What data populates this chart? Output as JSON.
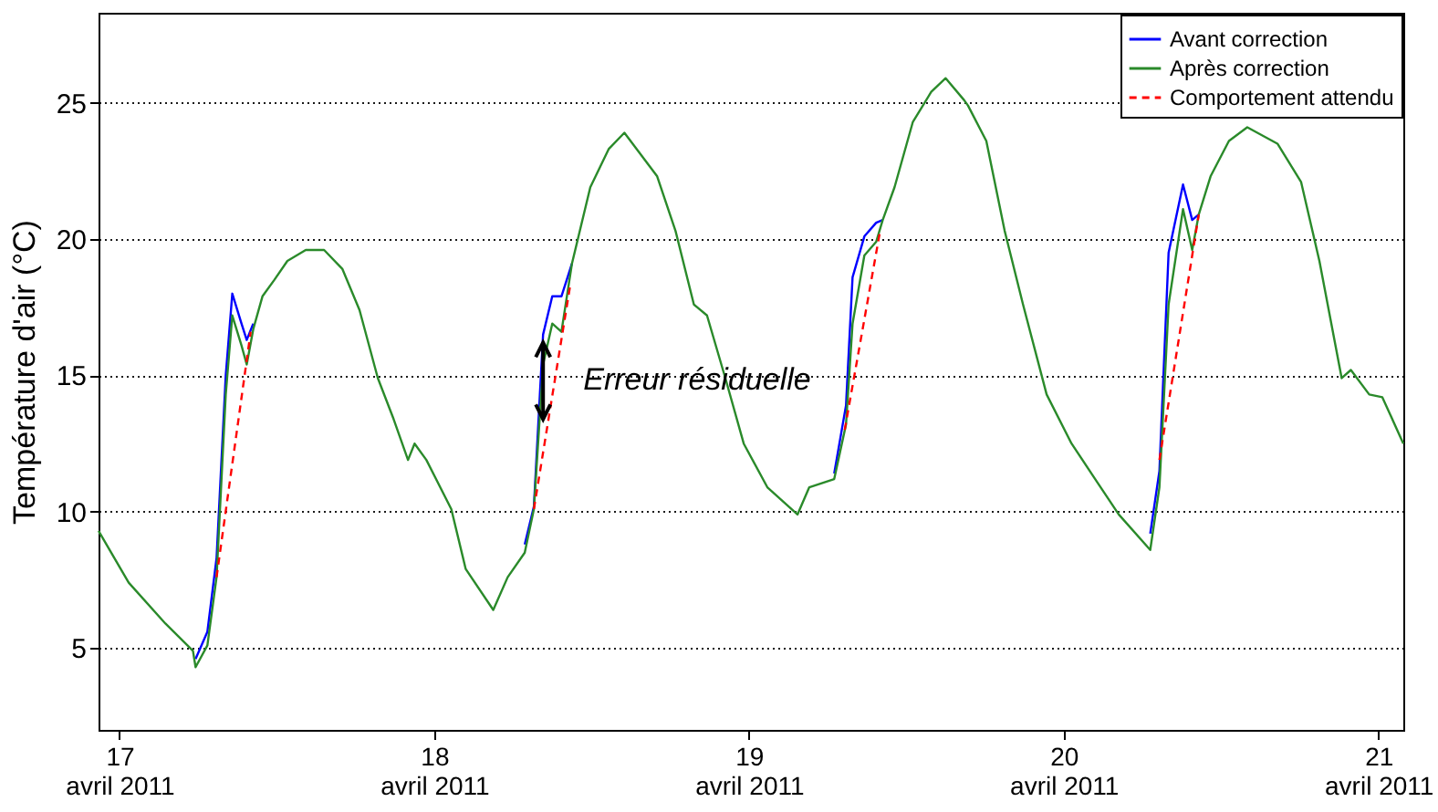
{
  "chart_data": {
    "type": "line",
    "ylabel": "Température d'air (°C)",
    "x": [
      "2011-04-16T22:24",
      "2011-04-17T00:42",
      "2011-04-17T03:30",
      "2011-04-17T05:36",
      "2011-04-17T05:48",
      "2011-04-17T06:42",
      "2011-04-17T07:24",
      "2011-04-17T08:06",
      "2011-04-17T08:36",
      "2011-04-17T09:18",
      "2011-04-17T09:42",
      "2011-04-17T10:12",
      "2011-04-17T10:54",
      "2011-04-17T11:48",
      "2011-04-17T12:48",
      "2011-04-17T14:12",
      "2011-04-17T15:36",
      "2011-04-17T17:00",
      "2011-04-17T18:18",
      "2011-04-17T19:42",
      "2011-04-17T20:54",
      "2011-04-17T22:00",
      "2011-04-17T22:30",
      "2011-04-17T23:24",
      "2011-04-18T01:18",
      "2011-04-18T02:24",
      "2011-04-18T04:30",
      "2011-04-18T05:36",
      "2011-04-18T06:54",
      "2011-04-18T07:36",
      "2011-04-18T08:18",
      "2011-04-18T09:00",
      "2011-04-18T09:42",
      "2011-04-18T10:30",
      "2011-04-18T11:54",
      "2011-04-18T13:18",
      "2011-04-18T14:30",
      "2011-04-18T15:36",
      "2011-04-18T17:00",
      "2011-04-18T18:24",
      "2011-04-18T19:48",
      "2011-04-18T20:48",
      "2011-04-18T22:12",
      "2011-04-18T23:36",
      "2011-04-19T01:24",
      "2011-04-19T03:42",
      "2011-04-19T04:36",
      "2011-04-19T06:30",
      "2011-04-19T07:24",
      "2011-04-19T07:54",
      "2011-04-19T08:48",
      "2011-04-19T09:42",
      "2011-04-19T10:12",
      "2011-04-19T11:06",
      "2011-04-19T12:30",
      "2011-04-19T13:54",
      "2011-04-19T15:00",
      "2011-04-19T16:24",
      "2011-04-19T16:42",
      "2011-04-19T18:06",
      "2011-04-19T19:30",
      "2011-04-19T20:54",
      "2011-04-19T22:42",
      "2011-04-20T00:36",
      "2011-04-20T02:24",
      "2011-04-20T04:12",
      "2011-04-20T06:36",
      "2011-04-20T07:18",
      "2011-04-20T08:00",
      "2011-04-20T09:06",
      "2011-04-20T09:48",
      "2011-04-20T10:18",
      "2011-04-20T11:12",
      "2011-04-20T12:36",
      "2011-04-20T14:00",
      "2011-04-20T16:18",
      "2011-04-20T18:06",
      "2011-04-20T19:30",
      "2011-04-20T21:12",
      "2011-04-20T21:54",
      "2011-04-20T23:18",
      "2011-04-21T00:18",
      "2011-04-21T01:54"
    ],
    "series": [
      {
        "name": "Avant correction",
        "color": "#0000ff",
        "values": [
          null,
          null,
          null,
          null,
          4.6,
          5.6,
          8.3,
          15.0,
          18.0,
          16.9,
          16.3,
          16.9,
          null,
          null,
          null,
          null,
          null,
          null,
          null,
          null,
          null,
          null,
          null,
          null,
          null,
          null,
          null,
          null,
          8.8,
          10.2,
          16.5,
          17.9,
          17.9,
          19.1,
          null,
          null,
          null,
          null,
          null,
          null,
          null,
          null,
          null,
          null,
          null,
          null,
          null,
          11.4,
          13.9,
          18.6,
          20.1,
          20.6,
          20.7,
          null,
          null,
          null,
          null,
          null,
          null,
          null,
          null,
          null,
          null,
          null,
          null,
          null,
          9.2,
          11.5,
          19.5,
          22.0,
          20.7,
          20.9,
          null,
          null,
          null,
          null,
          null,
          null,
          null,
          null,
          null,
          null,
          null
        ]
      },
      {
        "name": "Après correction",
        "color": "#2a8a2a",
        "values": [
          9.3,
          7.4,
          5.9,
          4.9,
          4.3,
          5.1,
          7.6,
          14.3,
          17.2,
          16.1,
          15.4,
          16.7,
          17.9,
          18.5,
          19.2,
          19.6,
          19.6,
          18.9,
          17.4,
          14.9,
          13.4,
          11.9,
          12.5,
          11.9,
          10.1,
          7.9,
          6.4,
          7.6,
          8.5,
          10.1,
          15.4,
          16.9,
          16.6,
          19.1,
          21.9,
          23.3,
          23.9,
          23.2,
          22.3,
          20.3,
          17.6,
          17.2,
          14.9,
          12.5,
          10.9,
          9.9,
          10.9,
          11.2,
          13.2,
          16.9,
          19.4,
          19.9,
          20.7,
          21.9,
          24.3,
          25.4,
          25.9,
          25.1,
          24.9,
          23.6,
          20.3,
          17.6,
          14.3,
          12.5,
          11.2,
          9.9,
          8.6,
          10.9,
          17.6,
          21.1,
          19.6,
          20.9,
          22.3,
          23.6,
          24.1,
          23.5,
          22.1,
          19.2,
          14.9,
          15.2,
          14.3,
          14.2,
          12.5
        ]
      },
      {
        "name": "Comportement attendu",
        "color": "#ff0000",
        "line_style": "dashed",
        "x": [
          "2011-04-17T07:24",
          "2011-04-17T10:00",
          "2011-04-17T20:00",
          "2011-04-18T07:36",
          "2011-04-18T10:24",
          "2011-04-19T00:00",
          "2011-04-19T07:18",
          "2011-04-19T10:00",
          "2011-04-20T00:00",
          "2011-04-20T07:18",
          "2011-04-20T10:18"
        ],
        "values": [
          7.6,
          16.6,
          null,
          10.1,
          18.4,
          null,
          13.0,
          20.3,
          null,
          11.9,
          20.9
        ]
      }
    ],
    "xlim": [
      "2011-04-16T22:24",
      "2011-04-21T01:54"
    ],
    "xticks": [
      {
        "value": "2011-04-17",
        "label": "17 avril 2011"
      },
      {
        "value": "2011-04-18",
        "label": "18 avril 2011"
      },
      {
        "value": "2011-04-19",
        "label": "19 avril 2011"
      },
      {
        "value": "2011-04-20",
        "label": "20 avril 2011"
      },
      {
        "value": "2011-04-21",
        "label": "21 avril 2011"
      }
    ],
    "ylim": [
      2,
      28.3
    ],
    "yticks": [
      5,
      10,
      15,
      20,
      25
    ],
    "grid": "y",
    "legend": "top right",
    "marker": "none",
    "line_style": "solid",
    "annotations": [
      {
        "text": "Erreur résiduelle",
        "x": "2011-04-18T08:18",
        "y": 14.8
      }
    ]
  }
}
